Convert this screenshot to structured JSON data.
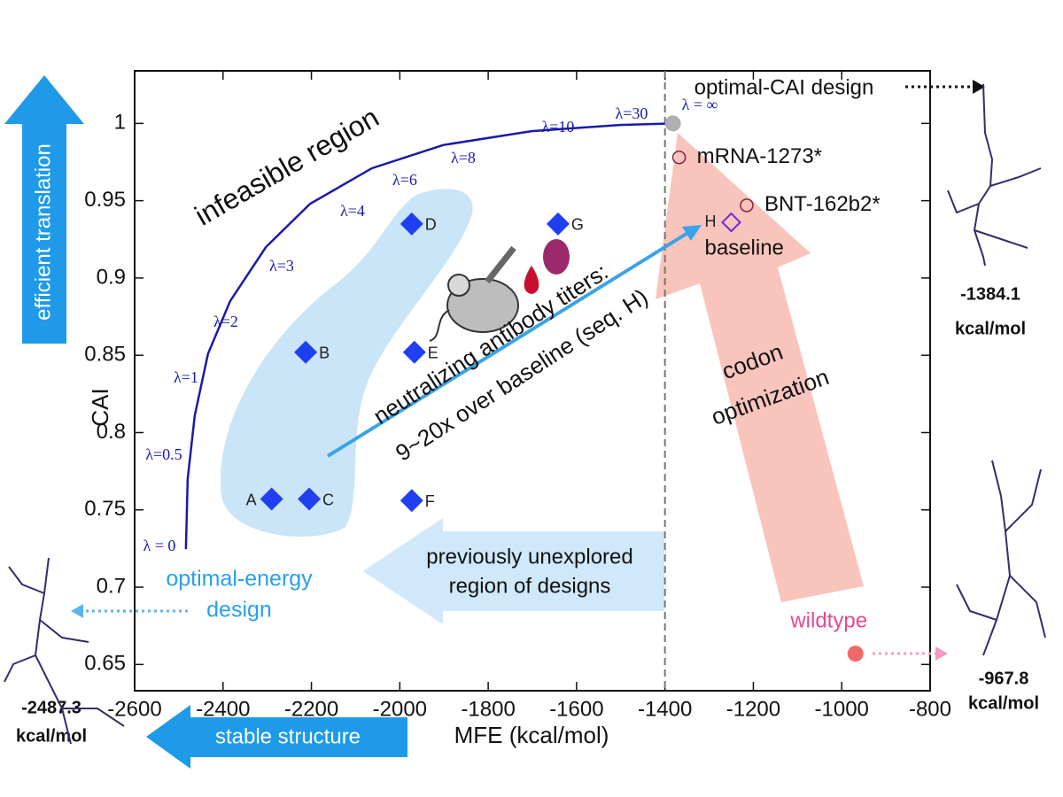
{
  "chart_data": {
    "type": "scatter",
    "x_label": "MFE (kcal/mol)",
    "y_label": "CAI",
    "xlim": [
      -2600,
      -800
    ],
    "ylim": [
      0.633,
      1.034
    ],
    "xticks": [
      -2600,
      -2400,
      -2200,
      -2000,
      -1800,
      -1600,
      -1400,
      -1200,
      -1000,
      -800
    ],
    "yticks": [
      0.65,
      0.7,
      0.75,
      0.8,
      0.85,
      0.9,
      0.95,
      1
    ],
    "vline": -1400,
    "curve": {
      "color": "#1a1aa8",
      "x": [
        -2484,
        -2480,
        -2464,
        -2434,
        -2384,
        -2303,
        -2203,
        -2063,
        -1902,
        -1702,
        -1502,
        -1382
      ],
      "y": [
        0.7246,
        0.77,
        0.811,
        0.851,
        0.885,
        0.92,
        0.948,
        0.971,
        0.986,
        0.995,
        0.999,
        1.0
      ],
      "labels": [
        "λ = 0",
        "λ=0.5",
        "λ=1",
        "λ=2",
        "λ=3",
        "λ=4",
        "λ=6",
        "λ=8",
        "λ=10",
        "λ=30",
        "λ = ∞"
      ]
    },
    "designs": {
      "color": "#1f3ff0",
      "labels": [
        "A",
        "B",
        "C",
        "D",
        "E",
        "F",
        "G"
      ],
      "x": [
        -2290,
        -2213,
        -2205,
        -1973,
        -1967,
        -1973,
        -1642
      ],
      "y": [
        0.757,
        0.852,
        0.757,
        0.935,
        0.852,
        0.756,
        0.935
      ]
    },
    "baseline": {
      "label": "H",
      "name": "baseline",
      "x": -1250,
      "y": 0.936,
      "color": "#6a2bd0"
    },
    "references": [
      {
        "label": "mRNA-1273*",
        "x": -1368,
        "y": 0.978,
        "color": "#8a2040"
      },
      {
        "label": "BNT-162b2*",
        "x": -1215,
        "y": 0.947,
        "color": "#8a2040"
      }
    ],
    "wildtype": {
      "label": "wildtype",
      "x": -969,
      "y": 0.657,
      "color": "#f06868"
    },
    "optimal_cai": {
      "x": -1382,
      "y": 1.0,
      "color": "#b0b0b0"
    },
    "annotations": {
      "infeasible": "infeasible region",
      "titers1": "neutralizing antibody titers:",
      "titers2": "9~20x over baseline (seq. H)",
      "codon1": "codon",
      "codon2": "optimization",
      "unexplored1": "previously unexplored",
      "unexplored2": "region of designs",
      "energy1": "optimal-energy",
      "energy2": "design",
      "stable": "stable structure",
      "translation": "efficient translation",
      "cai_design": "optimal-CAI design",
      "s1_value": "-1384.1",
      "s2_value": "-967.8",
      "s3_value": "-2487.3",
      "unit1": "kcal/mol",
      "unit2": "kcal/mol",
      "unit3": "kcal/mol"
    }
  }
}
